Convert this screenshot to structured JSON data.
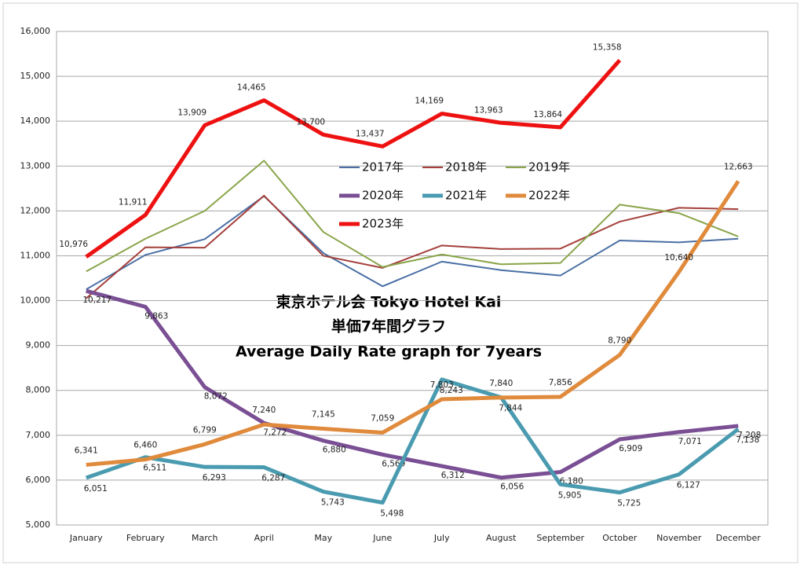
{
  "chart_data": {
    "type": "line",
    "title": [
      "東京ホテル会  Tokyo Hotel Kai",
      "単価7年間グラフ",
      "Average Daily Rate graph for 7years"
    ],
    "categories": [
      "January",
      "February",
      "March",
      "April",
      "May",
      "June",
      "July",
      "August",
      "September",
      "October",
      "November",
      "December"
    ],
    "ylim": [
      5000,
      16000
    ],
    "yticks": [
      {
        "value": 5000,
        "label": "5,000"
      },
      {
        "value": 6000,
        "label": "6,000"
      },
      {
        "value": 7000,
        "label": "7,000"
      },
      {
        "value": 8000,
        "label": "8,000"
      },
      {
        "value": 9000,
        "label": "9,000"
      },
      {
        "value": 10000,
        "label": "10,000"
      },
      {
        "value": 11000,
        "label": "11,000"
      },
      {
        "value": 12000,
        "label": "12,000"
      },
      {
        "value": 13000,
        "label": "13,000"
      },
      {
        "value": 14000,
        "label": "14,000"
      },
      {
        "value": 15000,
        "label": "15,000"
      },
      {
        "value": 16000,
        "label": "16,000"
      }
    ],
    "grid": true,
    "series": [
      {
        "name": "2017年",
        "color": "#4a6fa5",
        "values": [
          10250,
          11020,
          11370,
          12330,
          11060,
          10320,
          10870,
          10680,
          10560,
          11340,
          11300,
          11380
        ]
      },
      {
        "name": "2018年",
        "color": "#a4403c",
        "values": [
          10050,
          11190,
          11180,
          12340,
          11000,
          10730,
          11230,
          11150,
          11160,
          11760,
          12070,
          12040
        ]
      },
      {
        "name": "2019年",
        "color": "#8aa54a",
        "values": [
          10650,
          11380,
          12000,
          13120,
          11530,
          10750,
          11030,
          10810,
          10840,
          12140,
          11950,
          11430
        ]
      },
      {
        "name": "2020年",
        "color": "#7a4f94",
        "values": [
          10217,
          9863,
          8072,
          7272,
          6880,
          6569,
          6312,
          6056,
          6180,
          6909,
          7071,
          7208
        ],
        "value_labels": [
          "10,217",
          "9,863",
          "8,072",
          "7,272",
          "6,880",
          "6,569",
          "6,312",
          "6,056",
          "6,180",
          "6,909",
          "7,071",
          "7,208"
        ]
      },
      {
        "name": "2021年",
        "color": "#4a9bb0",
        "values": [
          6051,
          6511,
          6293,
          6287,
          5743,
          5498,
          8243,
          7844,
          5905,
          5725,
          6127,
          7138
        ],
        "value_labels": [
          "6,051",
          "6,511",
          "6,293",
          "6,287",
          "5,743",
          "5,498",
          "8,243",
          "7,844",
          "5,905",
          "5,725",
          "6,127",
          "7,138"
        ]
      },
      {
        "name": "2022年",
        "color": "#e08a3c",
        "values": [
          6341,
          6460,
          6799,
          7240,
          7145,
          7059,
          7803,
          7840,
          7856,
          8790,
          10640,
          12663
        ],
        "value_labels": [
          "6,341",
          "6,460",
          "6,799",
          "7,240",
          "7,145",
          "7,059",
          "7,803",
          "7,840",
          "7,856",
          "8,790",
          "10,640",
          "12,663"
        ]
      },
      {
        "name": "2023年",
        "color": "#ee1111",
        "values": [
          10976,
          11911,
          13909,
          14465,
          13700,
          13437,
          14169,
          13963,
          13864,
          15358,
          null,
          null
        ],
        "value_labels": [
          "10,976",
          "11,911",
          "13,909",
          "14,465",
          "13,700",
          "13,437",
          "14,169",
          "13,963",
          "13,864",
          "15,358",
          null,
          null
        ]
      }
    ]
  }
}
